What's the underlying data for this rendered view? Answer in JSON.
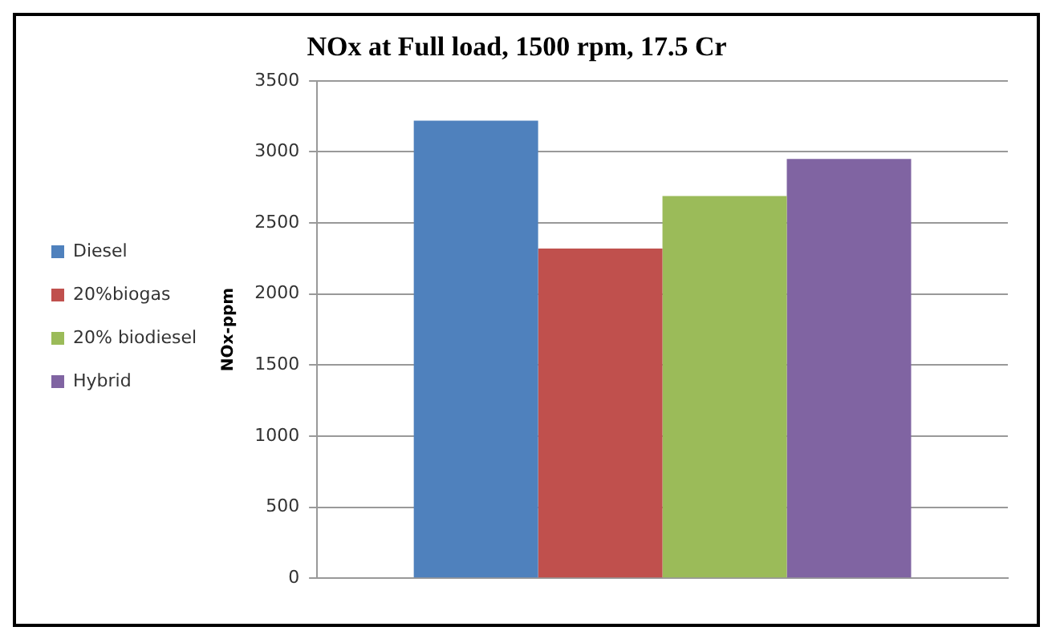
{
  "chart_data": {
    "type": "bar",
    "title": "NOx at Full load, 1500 rpm, 17.5 Cr",
    "ylabel": "NOx-ppm",
    "categories": [
      null
    ],
    "series": [
      {
        "name": "Diesel",
        "color": "#4f81bd",
        "values": [
          3220
        ]
      },
      {
        "name": "20%biogas",
        "color": "#c0504d",
        "values": [
          2320
        ]
      },
      {
        "name": "20% biodiesel",
        "color": "#9bbb59",
        "values": [
          2690
        ]
      },
      {
        "name": "Hybrid",
        "color": "#8064a2",
        "values": [
          2950
        ]
      }
    ],
    "ylim": [
      0,
      3500
    ],
    "yticks": [
      0,
      500,
      1000,
      1500,
      2000,
      2500,
      3000,
      3500
    ],
    "grid": "y",
    "legend": "left"
  }
}
